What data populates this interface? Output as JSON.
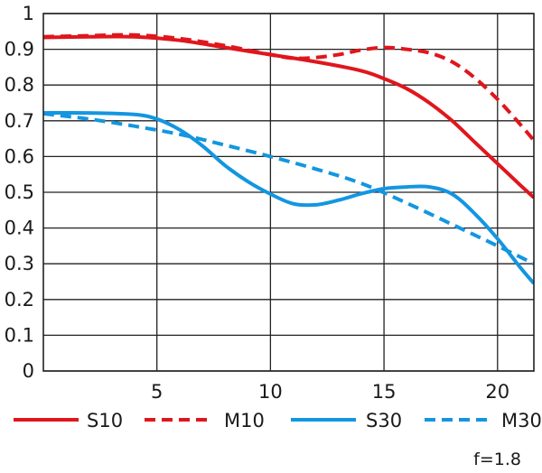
{
  "chart_data": {
    "type": "line",
    "title": "",
    "xlabel": "",
    "ylabel": "",
    "xlim": [
      0,
      21.6
    ],
    "ylim": [
      0,
      1
    ],
    "x_ticks": [
      5,
      10,
      15,
      20
    ],
    "y_ticks": [
      0,
      0.1,
      0.2,
      0.3,
      0.4,
      0.5,
      0.6,
      0.7,
      0.8,
      0.9,
      1
    ],
    "y_tick_labels": [
      "0",
      "0.1",
      "0.2",
      "0.3",
      "0.4",
      "0.5",
      "0.6",
      "0.7",
      "0.8",
      "0.9",
      "1"
    ],
    "x_tick_labels": [
      "5",
      "10",
      "15",
      "20"
    ],
    "grid": true,
    "legend_position": "bottom",
    "annotation": "f=1.8",
    "series": [
      {
        "name": "S10",
        "color": "#e0161d",
        "dash": "solid",
        "x": [
          0,
          2,
          4,
          6,
          8,
          10,
          12,
          14,
          15,
          16,
          17,
          18,
          19,
          20,
          21,
          21.6
        ],
        "y": [
          0.933,
          0.935,
          0.935,
          0.925,
          0.905,
          0.885,
          0.865,
          0.84,
          0.818,
          0.79,
          0.75,
          0.7,
          0.64,
          0.58,
          0.52,
          0.485
        ]
      },
      {
        "name": "M10",
        "color": "#e0161d",
        "dash": "dashed",
        "x": [
          0,
          2,
          4,
          6,
          8,
          10,
          11,
          12,
          13,
          14,
          15,
          16,
          17,
          18,
          19,
          20,
          21,
          21.6
        ],
        "y": [
          0.935,
          0.938,
          0.94,
          0.93,
          0.91,
          0.885,
          0.875,
          0.877,
          0.885,
          0.898,
          0.905,
          0.9,
          0.89,
          0.865,
          0.82,
          0.76,
          0.69,
          0.645
        ]
      },
      {
        "name": "S30",
        "color": "#1396e0",
        "dash": "solid",
        "x": [
          0,
          2,
          4,
          5,
          6,
          7,
          8,
          9,
          10,
          11,
          12,
          13,
          14,
          15,
          16,
          17,
          18,
          19,
          20,
          21,
          21.6
        ],
        "y": [
          0.722,
          0.722,
          0.718,
          0.705,
          0.675,
          0.63,
          0.575,
          0.53,
          0.495,
          0.468,
          0.465,
          0.478,
          0.496,
          0.51,
          0.515,
          0.515,
          0.495,
          0.44,
          0.37,
          0.29,
          0.245
        ]
      },
      {
        "name": "M30",
        "color": "#1396e0",
        "dash": "dashed",
        "x": [
          0,
          2,
          4,
          6,
          8,
          10,
          12,
          14,
          16,
          18,
          20,
          21.6
        ],
        "y": [
          0.72,
          0.705,
          0.685,
          0.662,
          0.632,
          0.6,
          0.565,
          0.525,
          0.47,
          0.41,
          0.35,
          0.3
        ]
      }
    ]
  }
}
